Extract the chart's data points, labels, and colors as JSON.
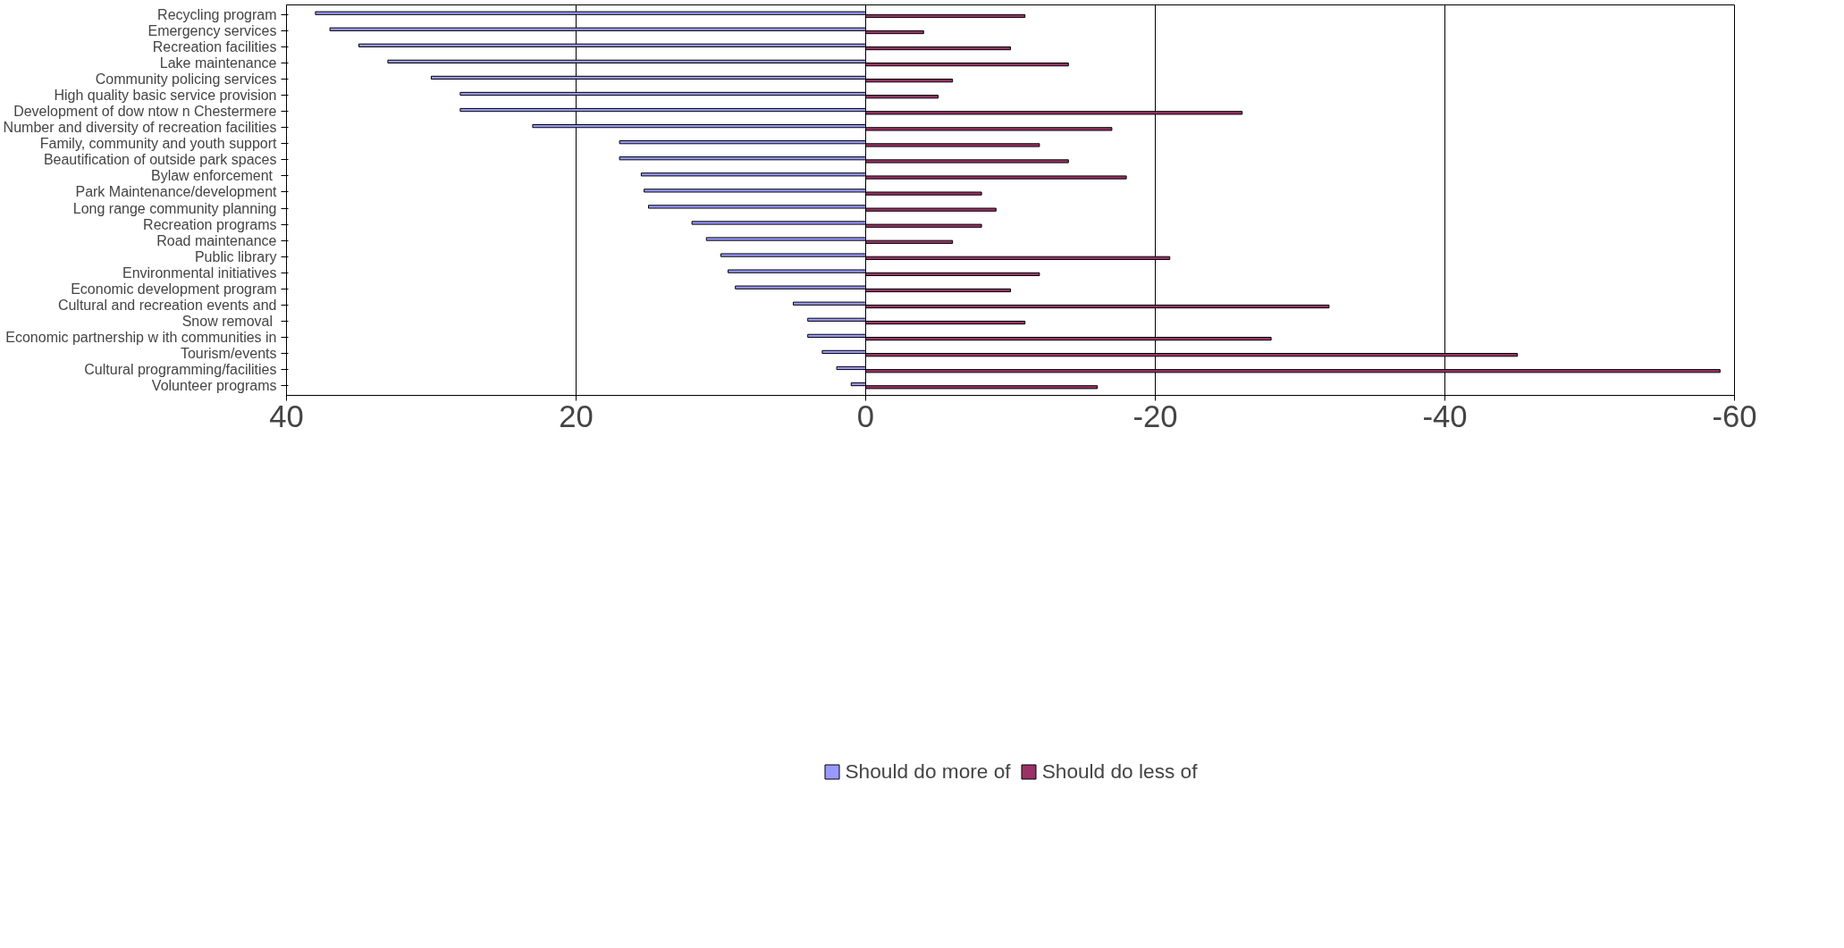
{
  "chart_data": {
    "type": "bar",
    "orientation": "horizontal",
    "categories": [
      "Recycling program",
      "Emergency services",
      "Recreation facilities",
      "Lake maintenance",
      "Community policing services",
      "High quality basic service provision",
      "Development of dow ntow n Chestermere",
      "Number and diversity of recreation facilities",
      "Family, community and youth support",
      "Beautification of outside park spaces",
      "Bylaw  enforcement",
      "Park Maintenance/development",
      "Long range community planning",
      "Recreation programs",
      "Road maintenance",
      "Public library",
      "Environmental initiatives",
      "Economic development program",
      "Cultural and recreation events and",
      "Snow  removal",
      "Economic partnership w ith communities in",
      "Tourism/events",
      "Cultural programming/facilities",
      "Volunteer programs"
    ],
    "series": [
      {
        "name": "Should do more of",
        "color": "#9999ff",
        "values": [
          38,
          37,
          35,
          33,
          30,
          28,
          28,
          23,
          17,
          17,
          15.5,
          15.3,
          15,
          12,
          11,
          10,
          9.5,
          9,
          5,
          4,
          4,
          3,
          2,
          1
        ]
      },
      {
        "name": "Should do less of",
        "color": "#993366",
        "values": [
          -11,
          -4,
          -10,
          -14,
          -6,
          -5,
          -26,
          -17,
          -12,
          -14,
          -18,
          -8,
          -9,
          -8,
          -6,
          -21,
          -12,
          -10,
          -32,
          -11,
          -28,
          -45,
          -59,
          -16
        ]
      }
    ],
    "xlim": [
      40,
      -60
    ],
    "xticks": [
      40,
      20,
      0,
      -20,
      -40,
      -60
    ],
    "grid": "x",
    "legend": "bottom"
  }
}
